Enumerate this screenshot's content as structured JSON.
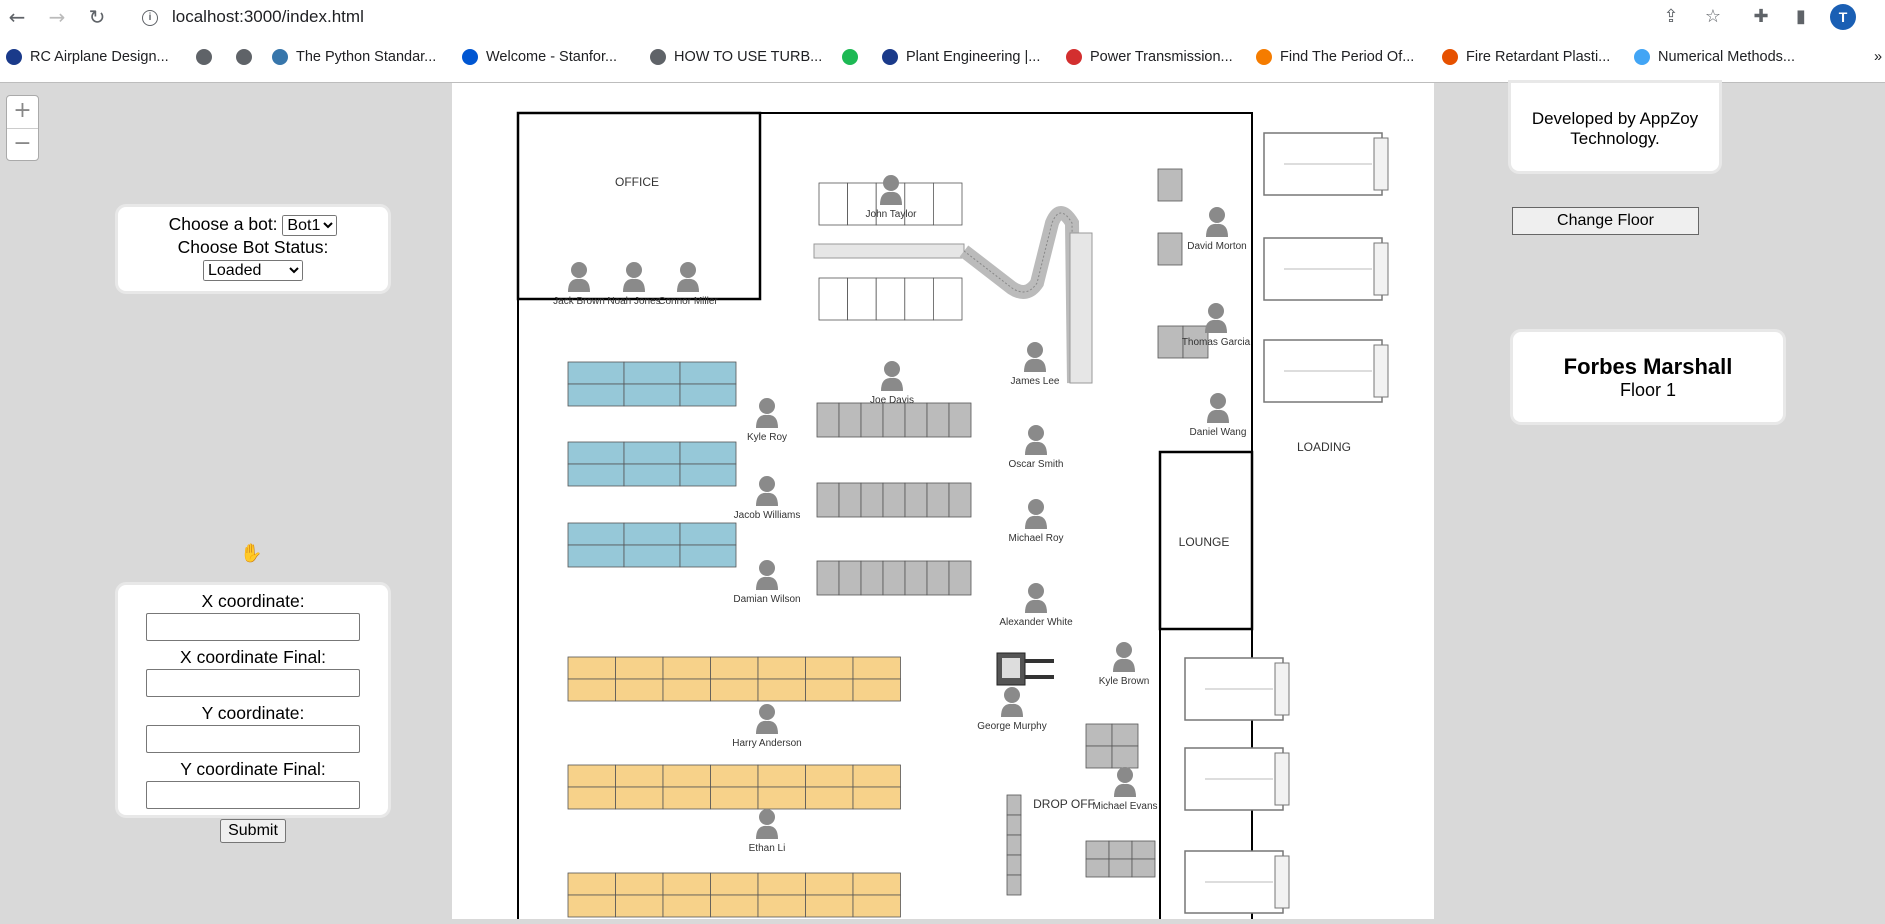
{
  "browser": {
    "url": "localhost:3000/index.html",
    "profile_initial": "T",
    "bookmarks": [
      {
        "label": "RC Airplane Design...",
        "icon": "plane-icon",
        "color": "#1a3a8a"
      },
      {
        "label": "",
        "icon": "globe-icon",
        "color": "#5f6368"
      },
      {
        "label": "",
        "icon": "globe-icon",
        "color": "#5f6368"
      },
      {
        "label": "The Python Standar...",
        "icon": "python-icon",
        "color": "#3776ab"
      },
      {
        "label": "Welcome - Stanfor...",
        "icon": "coursera-icon",
        "color": "#0056d2"
      },
      {
        "label": "HOW TO USE TURB...",
        "icon": "globe-icon",
        "color": "#5f6368"
      },
      {
        "label": "",
        "icon": "spotify-icon",
        "color": "#1db954"
      },
      {
        "label": "Plant Engineering |...",
        "icon": "pe-icon",
        "color": "#1a3a8a"
      },
      {
        "label": "Power Transmission...",
        "icon": "gear-icon",
        "color": "#d32f2f"
      },
      {
        "label": "Find The Period Of...",
        "icon": "c-icon",
        "color": "#f57c00"
      },
      {
        "label": "Fire Retardant Plasti...",
        "icon": "leaf-icon",
        "color": "#e65100"
      },
      {
        "label": "Numerical Methods...",
        "icon": "circle-icon",
        "color": "#42a5f5"
      }
    ],
    "more": "»"
  },
  "zoom": {
    "plus": "+",
    "minus": "−"
  },
  "bot_panel": {
    "choose_bot_label": "Choose a bot:",
    "bot_selected": "Bot1",
    "status_label": "Choose Bot Status:",
    "status_selected": "Loaded"
  },
  "coord_panel": {
    "x_label": "X coordinate:",
    "x_final_label": "X coordinate Final:",
    "y_label": "Y coordinate:",
    "y_final_label": "Y coordinate Final:",
    "submit": "Submit"
  },
  "dev_panel": {
    "text": "Developed by AppZoy Technology."
  },
  "change_floor": "Change Floor",
  "name_panel": {
    "company": "Forbes Marshall",
    "floor": "Floor 1"
  },
  "map": {
    "rooms": {
      "office": "OFFICE",
      "lounge": "LOUNGE",
      "loading": "LOADING",
      "dropoff": "DROP OFF"
    },
    "people": [
      "John Taylor",
      "Jack Brown",
      "Noah Jones",
      "Connor Miller",
      "David Morton",
      "Thomas Garcia",
      "James Lee",
      "Joe Davis",
      "Daniel Wang",
      "Kyle Roy",
      "Oscar Smith",
      "Jacob Williams",
      "Michael Roy",
      "Damian Wilson",
      "Alexander White",
      "Kyle Brown",
      "George Murphy",
      "Harry Anderson",
      "Michael Evans",
      "Ethan Li"
    ],
    "colors": {
      "blue_shelf": "#96c8d8",
      "yellow_shelf": "#f7d28a",
      "person": "#8a8a8a"
    }
  }
}
